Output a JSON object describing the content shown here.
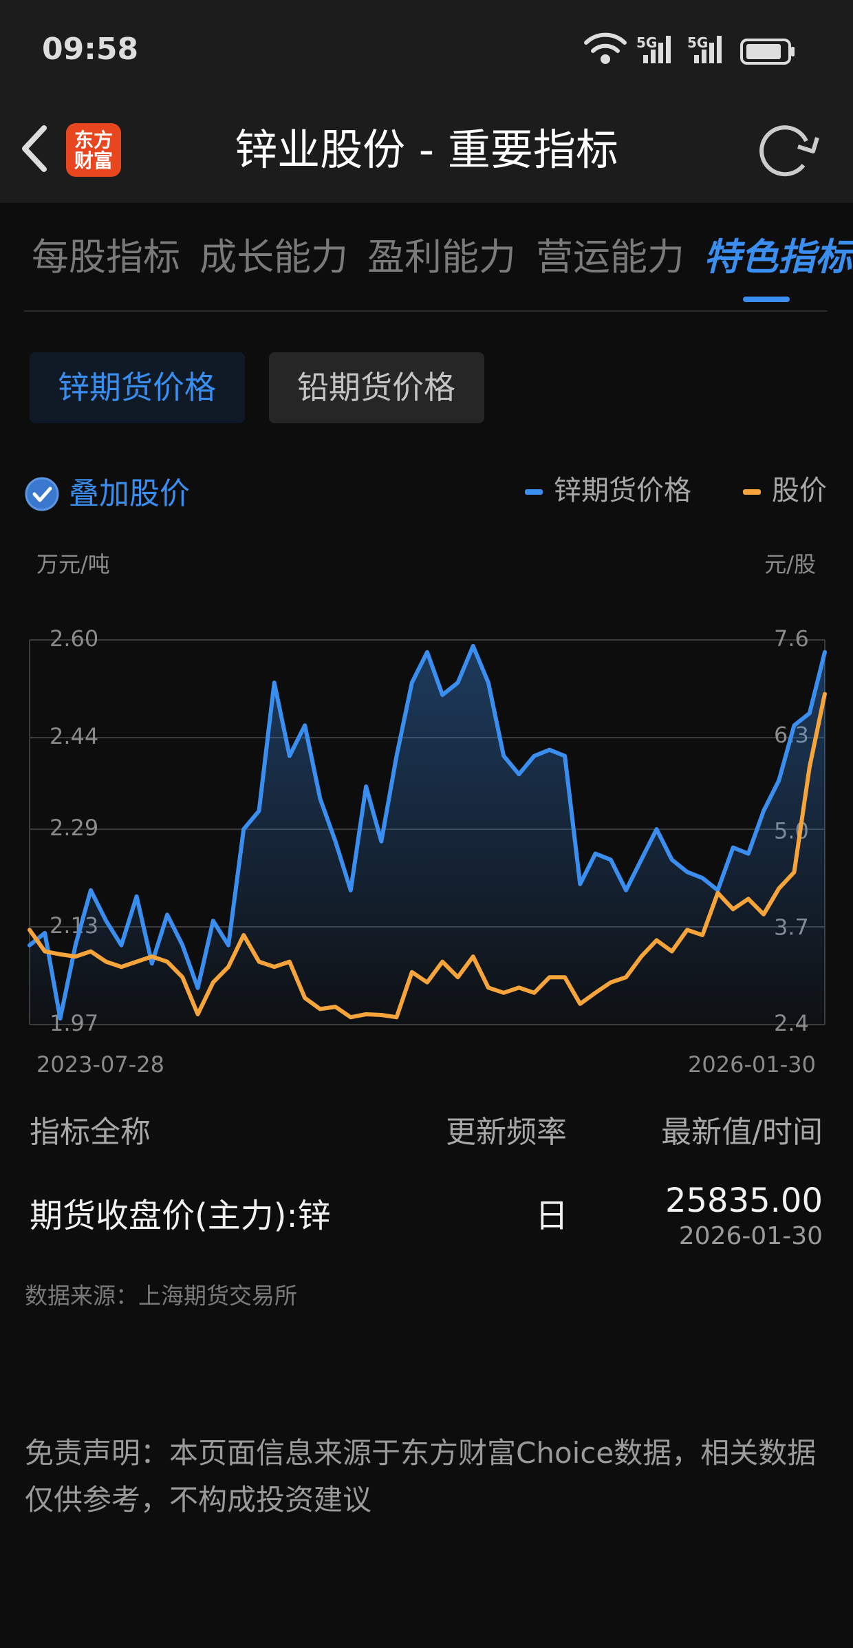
{
  "status_bar": {
    "time": "09:58",
    "network": [
      "5G",
      "5G"
    ]
  },
  "header": {
    "title": "锌业股份 - 重要指标",
    "logo_lines": [
      "东方",
      "财富"
    ]
  },
  "tabs": [
    "每股指标",
    "成长能力",
    "盈利能力",
    "营运能力",
    "特色指标"
  ],
  "active_tab": 4,
  "sub_tabs": [
    "锌期货价格",
    "铅期货价格"
  ],
  "overlay_toggle": "叠加股价",
  "chart_data": {
    "type": "line",
    "y_label": "万元/吨",
    "y2_label": "元/股",
    "categories": [
      "2023-07-28",
      null,
      null,
      null,
      null,
      null,
      null,
      null,
      null,
      null,
      null,
      null,
      null,
      null,
      null,
      null,
      null,
      null,
      null,
      null,
      null,
      null,
      null,
      null,
      null,
      null,
      null,
      null,
      null,
      null,
      null,
      null,
      null,
      null,
      null,
      null,
      null,
      null,
      null,
      null,
      null,
      null,
      null,
      null,
      null,
      null,
      null,
      null,
      null,
      null,
      null,
      null,
      "2026-01-30"
    ],
    "series": [
      {
        "name": "锌期货价格",
        "color": "#3a8ef0",
        "area": true,
        "values": [
          2.1,
          2.12,
          1.98,
          2.1,
          2.19,
          2.14,
          2.1,
          2.18,
          2.07,
          2.15,
          2.1,
          2.03,
          2.14,
          2.1,
          2.29,
          2.32,
          2.53,
          2.41,
          2.46,
          2.34,
          2.27,
          2.19,
          2.36,
          2.27,
          2.41,
          2.53,
          2.58,
          2.51,
          2.53,
          2.59,
          2.53,
          2.41,
          2.38,
          2.41,
          2.42,
          2.41,
          2.2,
          2.25,
          2.24,
          2.19,
          2.24,
          2.29,
          2.24,
          2.22,
          2.21,
          2.19,
          2.26,
          2.25,
          2.32,
          2.37,
          2.46,
          2.48,
          2.58
        ]
      },
      {
        "name": "股价",
        "color": "#f7a43a",
        "axis": "y2",
        "values": [
          3.68,
          3.39,
          3.35,
          3.32,
          3.39,
          3.25,
          3.18,
          3.25,
          3.32,
          3.25,
          3.04,
          2.54,
          2.97,
          3.18,
          3.61,
          3.25,
          3.18,
          3.25,
          2.76,
          2.61,
          2.64,
          2.5,
          2.54,
          2.53,
          2.5,
          3.11,
          2.97,
          3.25,
          3.04,
          3.32,
          2.9,
          2.83,
          2.9,
          2.83,
          3.04,
          3.04,
          2.68,
          2.83,
          2.97,
          3.04,
          3.32,
          3.54,
          3.39,
          3.68,
          3.61,
          4.18,
          3.96,
          4.1,
          3.89,
          4.24,
          4.46,
          5.88,
          6.87
        ]
      }
    ],
    "ylim": [
      1.97,
      2.6
    ],
    "yticks": [
      1.97,
      2.13,
      2.29,
      2.44,
      {
        "value": 2.6,
        "label": "2.60"
      }
    ],
    "y2lim": [
      2.4,
      7.6
    ],
    "y2ticks": [
      2.4,
      3.7,
      {
        "value": 5.0,
        "label": "5.0"
      },
      6.3,
      7.6
    ],
    "grid": true
  },
  "table": {
    "headers": [
      "指标全称",
      "更新频率",
      "最新值/时间"
    ],
    "rows": [
      [
        "期货收盘价(主力):锌",
        "日",
        "25835.00",
        "2026-01-30"
      ]
    ]
  },
  "source": "数据来源：上海期货交易所",
  "disclaimer_lines": [
    "免责声明：本页面信息来源于东方财富Choice数据，相关数据",
    "仅供参考，不构成投资建议"
  ]
}
